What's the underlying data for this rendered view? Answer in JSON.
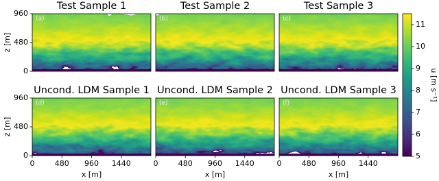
{
  "chart_data": [
    {
      "type": "heatmap",
      "title": "Test Sample 1",
      "label": "(a)",
      "xlim": [
        0,
        1920
      ],
      "ylim": [
        0,
        960
      ],
      "yticks": [
        0,
        480,
        960
      ],
      "ylabel": "z [m]"
    },
    {
      "type": "heatmap",
      "title": "Test Sample 2",
      "label": "(b)",
      "xlim": [
        0,
        1920
      ],
      "ylim": [
        0,
        960
      ]
    },
    {
      "type": "heatmap",
      "title": "Test Sample 3",
      "label": "(c)",
      "xlim": [
        0,
        1920
      ],
      "ylim": [
        0,
        960
      ]
    },
    {
      "type": "heatmap",
      "title": "Uncond. LDM Sample 1",
      "label": "(d)",
      "xlim": [
        0,
        1920
      ],
      "ylim": [
        0,
        960
      ],
      "xticks": [
        0,
        480,
        960,
        1440
      ],
      "xlabel": "x [m]",
      "yticks": [
        0,
        480,
        960
      ],
      "ylabel": "z [m]"
    },
    {
      "type": "heatmap",
      "title": "Uncond. LDM Sample 2",
      "label": "(e)",
      "xlim": [
        0,
        1920
      ],
      "ylim": [
        0,
        960
      ],
      "xticks": [
        0,
        480,
        960,
        1440
      ],
      "xlabel": "x [m]"
    },
    {
      "type": "heatmap",
      "title": "Uncond. LDM Sample 3",
      "label": "(f)",
      "xlim": [
        0,
        1920
      ],
      "ylim": [
        0,
        960
      ],
      "xticks": [
        0,
        480,
        960,
        1440
      ],
      "xlabel": "x [m]"
    },
    {
      "type": "colorbar",
      "label": "u [m s⁻¹]",
      "ylim": [
        5,
        11.5
      ],
      "yticks": [
        5,
        6,
        7,
        8,
        9,
        10,
        11
      ],
      "colormap": "viridis"
    }
  ]
}
